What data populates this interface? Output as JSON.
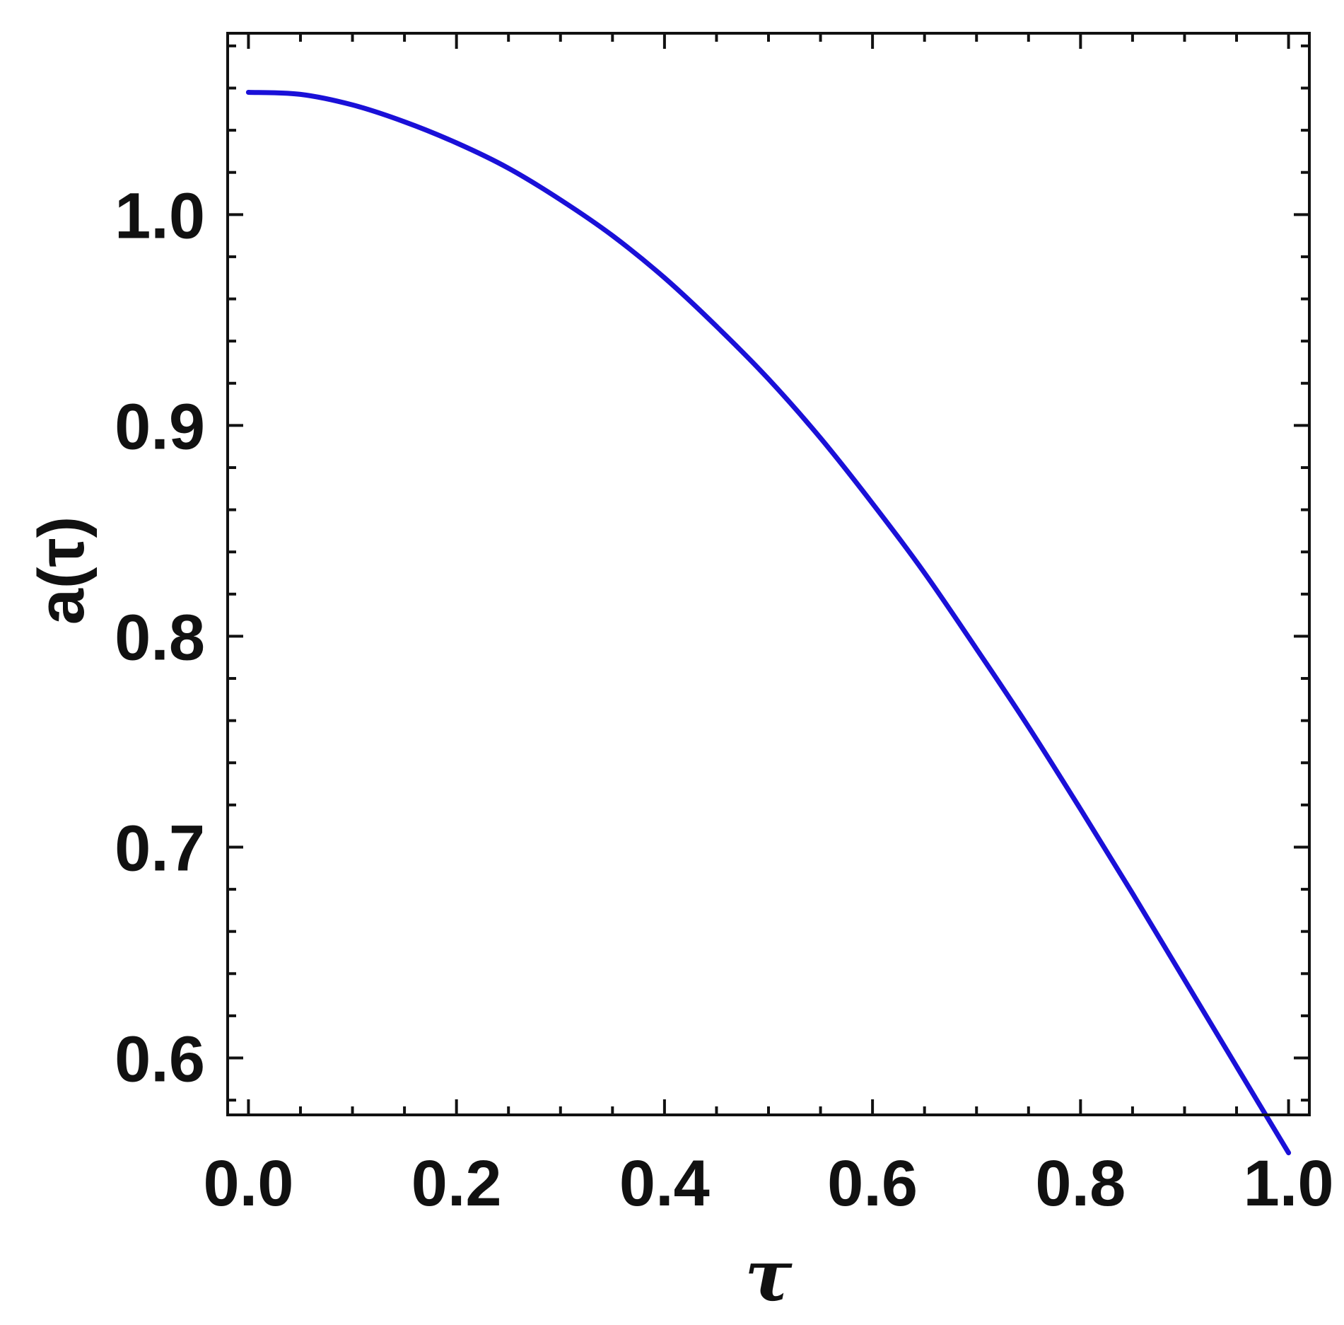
{
  "chart_data": {
    "type": "line",
    "title": "",
    "xlabel": "τ",
    "ylabel": "a(τ)",
    "xlim": [
      -0.02,
      1.02
    ],
    "ylim": [
      0.573,
      1.086
    ],
    "x_ticks": [
      0.0,
      0.2,
      0.4,
      0.6,
      0.8,
      1.0
    ],
    "x_tick_labels": [
      "0.0",
      "0.2",
      "0.4",
      "0.6",
      "0.8",
      "1.0"
    ],
    "y_ticks": [
      0.6,
      0.7,
      0.8,
      0.9,
      1.0
    ],
    "y_tick_labels": [
      "0.6",
      "0.7",
      "0.8",
      "0.9",
      "1.0"
    ],
    "grid": false,
    "colors": {
      "series": "#1a10d8",
      "frame": "#111111"
    },
    "series": [
      {
        "x": [
          0.0,
          0.05,
          0.1,
          0.15,
          0.2,
          0.25,
          0.3,
          0.35,
          0.4,
          0.45,
          0.5,
          0.55,
          0.6,
          0.65,
          0.7,
          0.75,
          0.8,
          0.85,
          0.9,
          0.95,
          1.0
        ],
        "y": [
          1.058,
          1.057,
          1.052,
          1.044,
          1.034,
          1.022,
          1.007,
          0.99,
          0.97,
          0.947,
          0.922,
          0.894,
          0.863,
          0.83,
          0.794,
          0.757,
          0.718,
          0.678,
          0.637,
          0.596,
          0.555
        ]
      }
    ]
  }
}
